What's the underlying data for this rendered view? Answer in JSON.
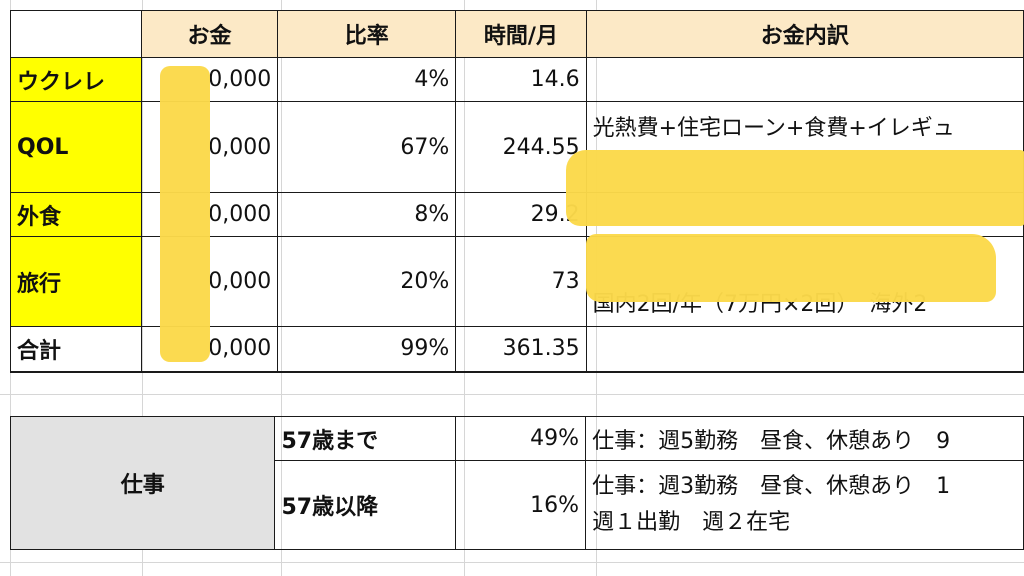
{
  "budget_table": {
    "headers": [
      "",
      "お金",
      "比率",
      "時間/月",
      "お金内訳"
    ],
    "rows": [
      {
        "category": "ウクレレ",
        "money": "0,000",
        "ratio": "4%",
        "time": "14.6",
        "detail": ""
      },
      {
        "category": "QOL",
        "money": "0,000",
        "ratio": "67%",
        "time": "244.55",
        "detail": "光熱費+住宅ローン+食費+イレギュ"
      },
      {
        "category": "外食",
        "money": "0,000",
        "ratio": "8%",
        "time": "29.2",
        "detail": ""
      },
      {
        "category": "旅行",
        "money": "0,000",
        "ratio": "20%",
        "time": "73",
        "detail": "国内2回/年（7万円×2回）　海外2"
      },
      {
        "category": "合計",
        "money": "0,000",
        "ratio": "99%",
        "time": "361.35",
        "detail": ""
      }
    ]
  },
  "work_table": {
    "label": "仕事",
    "rows": [
      {
        "age": "57歳まで",
        "ratio": "49%",
        "detail_lines": [
          "仕事：週5勤務　昼食、休憩あり　9"
        ]
      },
      {
        "age": "57歳以降",
        "ratio": "16%",
        "detail_lines": [
          "仕事：週3勤務　昼食、休憩あり　1",
          "週１出勤　週２在宅"
        ]
      }
    ]
  },
  "colors": {
    "header_bg": "#fce9c6",
    "category_bg": "#ffff00",
    "work_label_bg": "#e2e2e2",
    "redaction": "#fbd94a"
  }
}
